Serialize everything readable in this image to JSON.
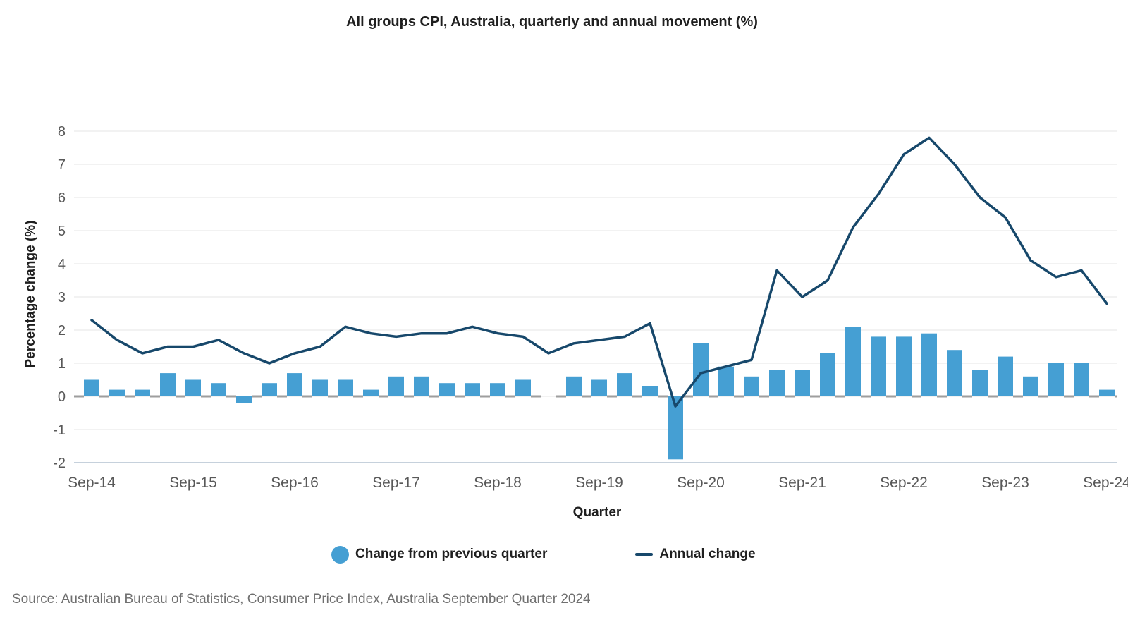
{
  "source_note": "Source: Australian Bureau of Statistics, Consumer Price Index, Australia September Quarter 2024",
  "chart_data": {
    "type": "combo",
    "title": "All groups CPI, Australia, quarterly and annual movement (%)",
    "xlabel": "Quarter",
    "ylabel": "Percentage change (%)",
    "ylim": [
      -2,
      8
    ],
    "yticks": [
      8,
      7,
      6,
      5,
      4,
      3,
      2,
      1,
      0,
      -1,
      -2
    ],
    "xticks": [
      "Sep-14",
      "Sep-15",
      "Sep-16",
      "Sep-17",
      "Sep-18",
      "Sep-19",
      "Sep-20",
      "Sep-21",
      "Sep-22",
      "Sep-23",
      "Sep-24"
    ],
    "xtick_every": 4,
    "grid": "horizontal",
    "zero_line": "dashed",
    "legend_position": "bottom",
    "categories": [
      "Sep-14",
      "Dec-14",
      "Mar-15",
      "Jun-15",
      "Sep-15",
      "Dec-15",
      "Mar-16",
      "Jun-16",
      "Sep-16",
      "Dec-16",
      "Mar-17",
      "Jun-17",
      "Sep-17",
      "Dec-17",
      "Mar-18",
      "Jun-18",
      "Sep-18",
      "Dec-18",
      "Mar-19",
      "Jun-19",
      "Sep-19",
      "Dec-19",
      "Mar-20",
      "Jun-20",
      "Sep-20",
      "Dec-20",
      "Mar-21",
      "Jun-21",
      "Sep-21",
      "Dec-21",
      "Mar-22",
      "Jun-22",
      "Sep-22",
      "Dec-22",
      "Mar-23",
      "Jun-23",
      "Sep-23",
      "Dec-23",
      "Mar-24",
      "Jun-24",
      "Sep-24"
    ],
    "series": [
      {
        "name": "Change from previous quarter",
        "type": "bar",
        "color": "#459FD3",
        "values": [
          0.5,
          0.2,
          0.2,
          0.7,
          0.5,
          0.4,
          -0.2,
          0.4,
          0.7,
          0.5,
          0.5,
          0.2,
          0.6,
          0.6,
          0.4,
          0.4,
          0.4,
          0.5,
          0.0,
          0.6,
          0.5,
          0.7,
          0.3,
          -1.9,
          1.6,
          0.9,
          0.6,
          0.8,
          0.8,
          1.3,
          2.1,
          1.8,
          1.8,
          1.9,
          1.4,
          0.8,
          1.2,
          0.6,
          1.0,
          1.0,
          0.2
        ]
      },
      {
        "name": "Annual change",
        "type": "line",
        "color": "#17486B",
        "values": [
          2.3,
          1.7,
          1.3,
          1.5,
          1.5,
          1.7,
          1.3,
          1.0,
          1.3,
          1.5,
          2.1,
          1.9,
          1.8,
          1.9,
          1.9,
          2.1,
          1.9,
          1.8,
          1.3,
          1.6,
          1.7,
          1.8,
          2.2,
          -0.3,
          0.7,
          0.9,
          1.1,
          3.8,
          3.0,
          3.5,
          5.1,
          6.1,
          7.3,
          7.8,
          7.0,
          6.0,
          5.4,
          4.1,
          3.6,
          3.8,
          2.8
        ]
      }
    ],
    "colors": {
      "bar": "#459FD3",
      "line": "#17486B",
      "gridline": "#E4E4E4",
      "axis_line": "#C6D1DC",
      "zero_dash": "#9E9E9E",
      "tick_label": "#595959",
      "title": "#1F1F1F",
      "source": "#6F6F6F"
    }
  }
}
